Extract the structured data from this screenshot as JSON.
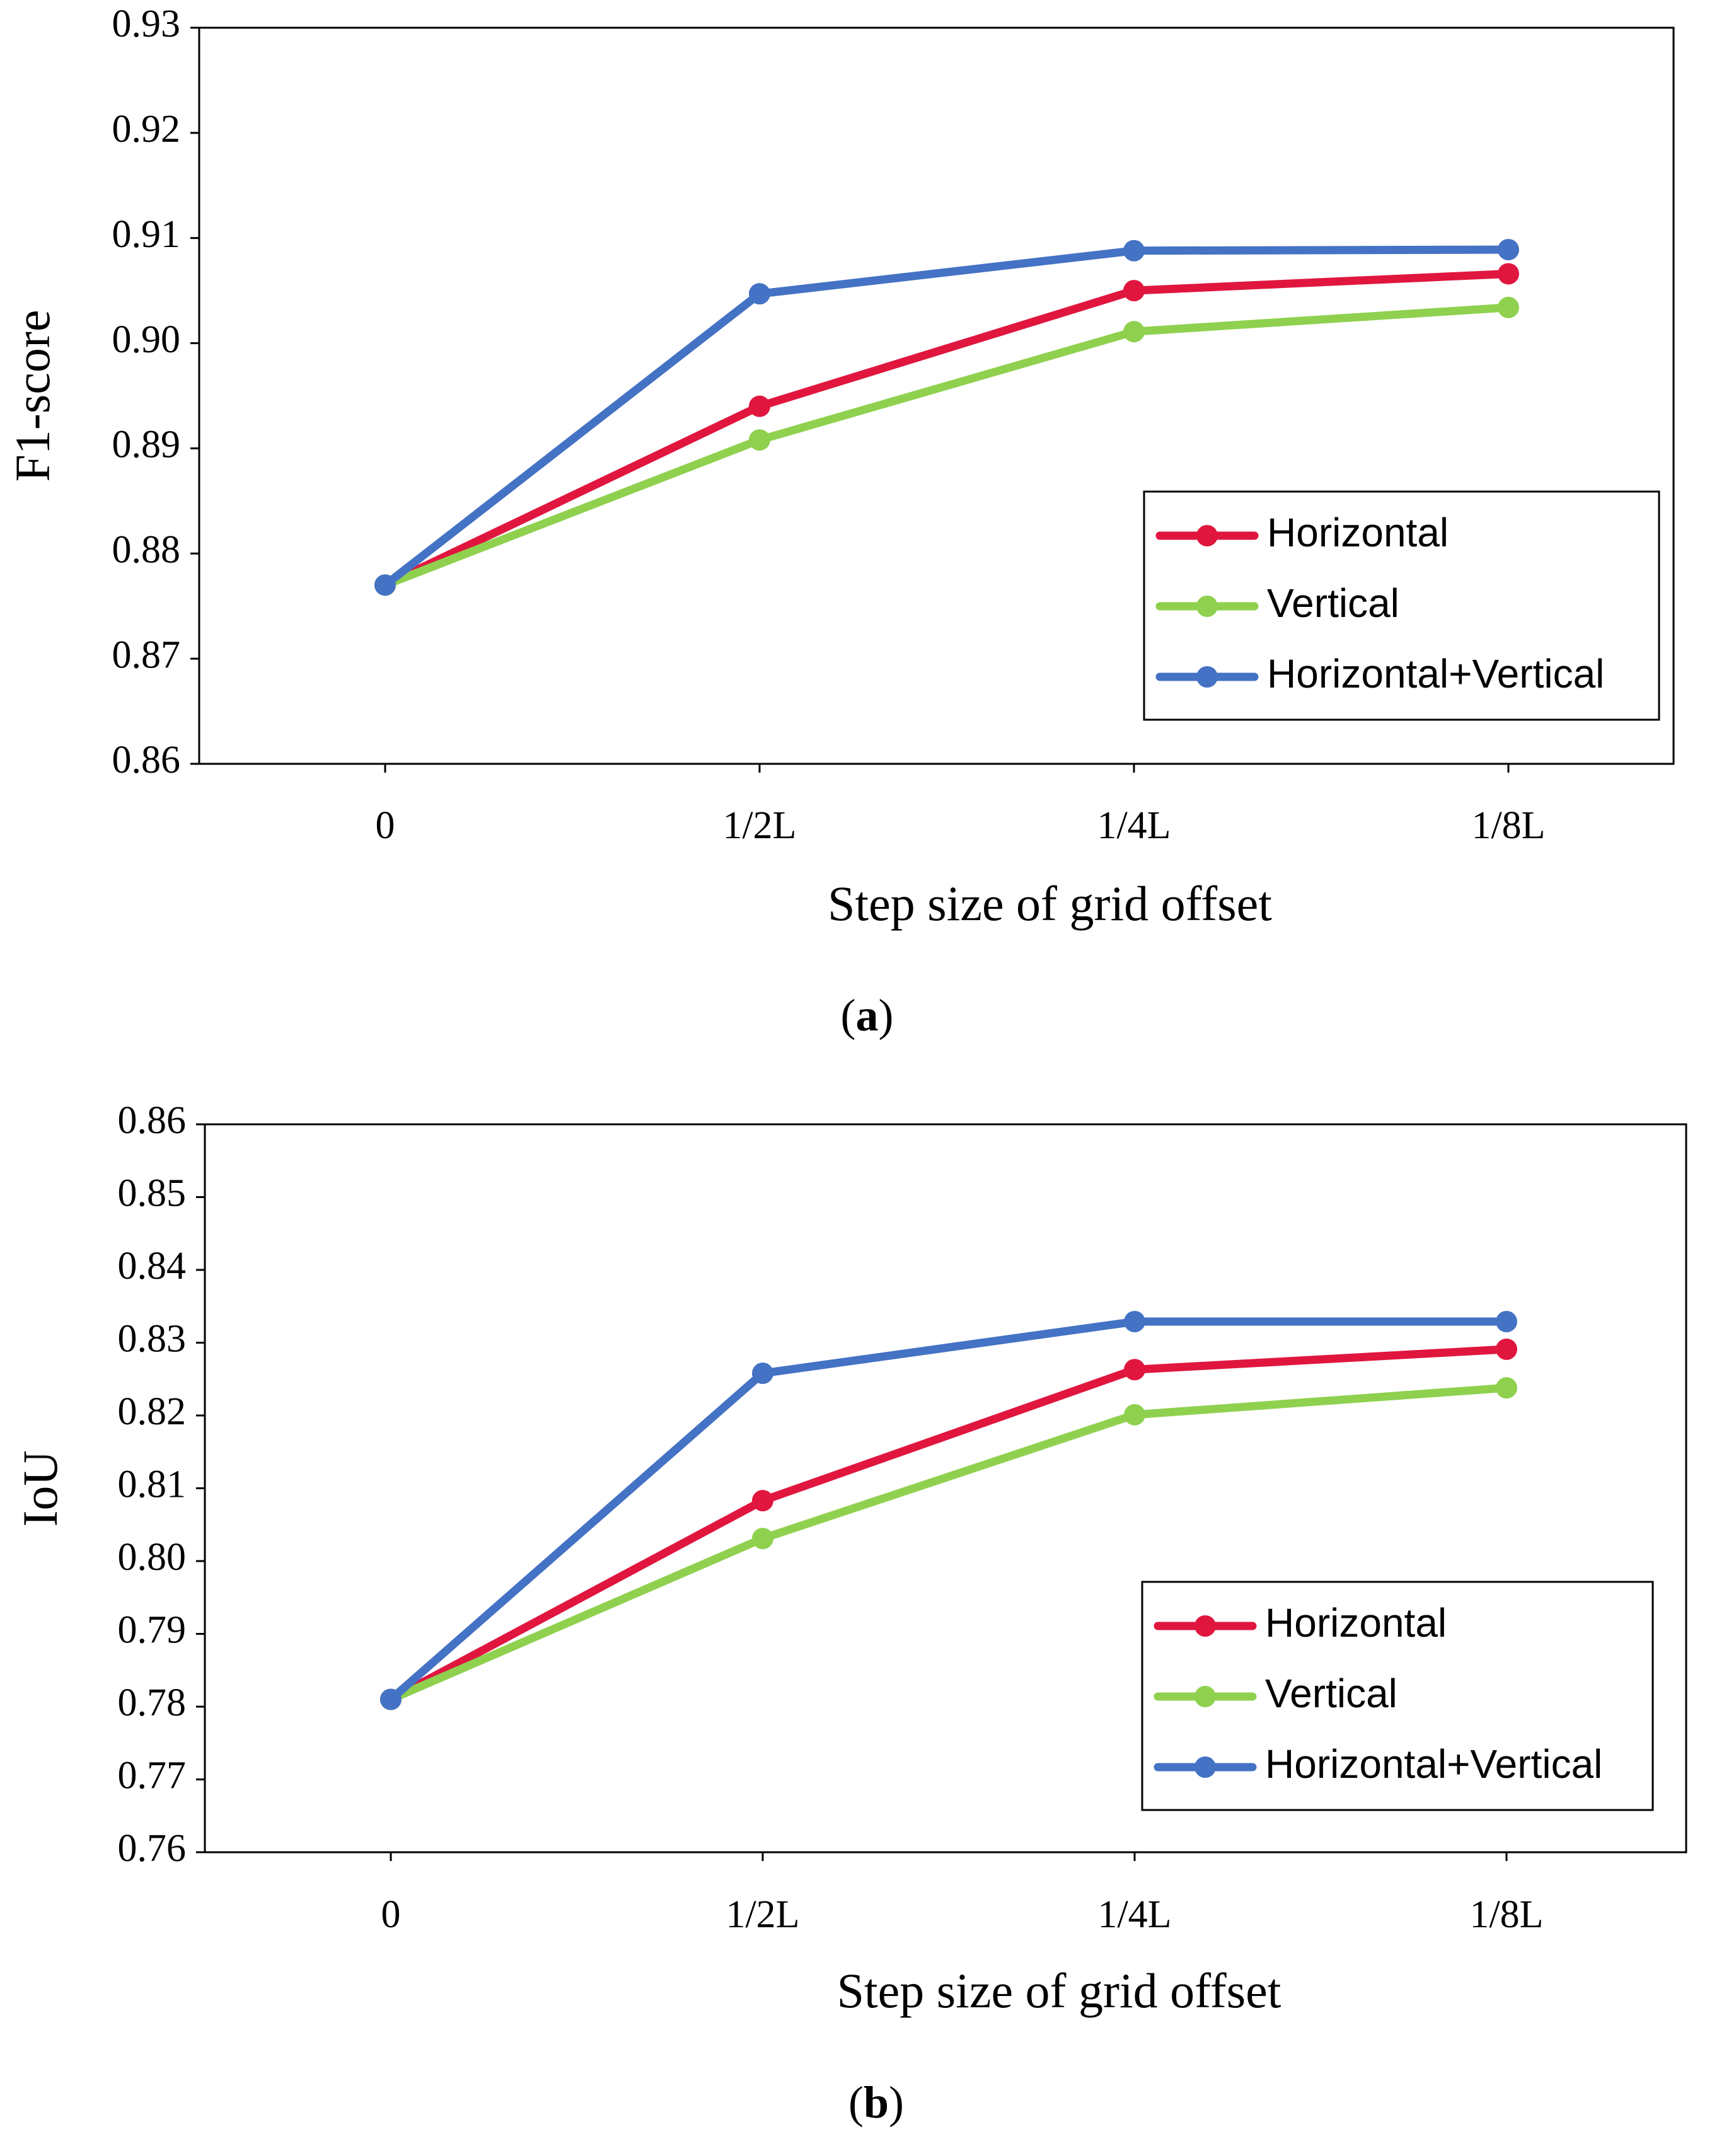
{
  "chart_data": [
    {
      "type": "line",
      "categories": [
        "0",
        "1/2L",
        "1/4L",
        "1/8L"
      ],
      "series": [
        {
          "name": "Horizontal",
          "color": "#e0163f",
          "values": [
            0.877,
            0.894,
            0.905,
            0.9066
          ]
        },
        {
          "name": "Vertical",
          "color": "#8fd14f",
          "values": [
            0.877,
            0.8908,
            0.9011,
            0.9034
          ]
        },
        {
          "name": "Horizontal+Vertical",
          "color": "#4472c4",
          "values": [
            0.877,
            0.9047,
            0.9088,
            0.9089
          ]
        }
      ],
      "xlabel": "Step size of grid offset",
      "ylabel": "F1-score",
      "ylim": [
        0.86,
        0.93
      ],
      "yticks": [
        "0.86",
        "0.87",
        "0.88",
        "0.89",
        "0.90",
        "0.91",
        "0.92",
        "0.93"
      ],
      "legend_position": "bottom-right",
      "grid": false,
      "caption_letter": "a"
    },
    {
      "type": "line",
      "categories": [
        "0",
        "1/2L",
        "1/4L",
        "1/8L"
      ],
      "series": [
        {
          "name": "Horizontal",
          "color": "#e0163f",
          "values": [
            0.781,
            0.8083,
            0.8263,
            0.8291
          ]
        },
        {
          "name": "Vertical",
          "color": "#8fd14f",
          "values": [
            0.781,
            0.8031,
            0.8201,
            0.8238
          ]
        },
        {
          "name": "Horizontal+Vertical",
          "color": "#4472c4",
          "values": [
            0.781,
            0.8258,
            0.8329,
            0.8329
          ]
        }
      ],
      "xlabel": "Step size of grid offset",
      "ylabel": "IoU",
      "ylim": [
        0.76,
        0.86
      ],
      "yticks": [
        "0.76",
        "0.77",
        "0.78",
        "0.79",
        "0.80",
        "0.81",
        "0.82",
        "0.83",
        "0.84",
        "0.85",
        "0.86"
      ],
      "legend_position": "bottom-right",
      "grid": false,
      "caption_letter": "b"
    }
  ]
}
